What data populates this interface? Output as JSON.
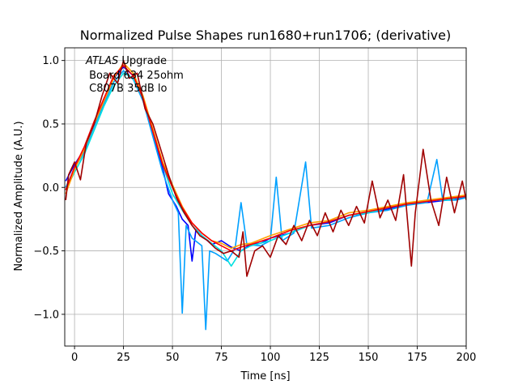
{
  "chart_data": {
    "type": "line",
    "title": "Normalized Pulse Shapes run1680+run1706; (derivative)",
    "xlabel": "Time [ns]",
    "ylabel": "Normalized Amplitude (A.U.)",
    "xlim": [
      -5,
      200
    ],
    "ylim": [
      -1.25,
      1.1
    ],
    "xticks": [
      0,
      25,
      50,
      75,
      100,
      125,
      150,
      175,
      200
    ],
    "yticks": [
      -1.0,
      -0.5,
      0.0,
      0.5,
      1.0
    ],
    "xtick_labels": [
      "0",
      "25",
      "50",
      "75",
      "100",
      "125",
      "150",
      "175",
      "200"
    ],
    "ytick_labels": [
      "−1.0",
      "−0.5",
      "0.0",
      "0.5",
      "1.0"
    ],
    "grid": true,
    "annotation": {
      "atlas": "ATLAS",
      "line1_rest": " Upgrade",
      "line2": " Board 634 25ohm",
      "line3": " C807B 35dB lo"
    },
    "series": [
      {
        "name": "trace-1",
        "color": "#0000ff",
        "points": [
          [
            -4.5,
            0.05
          ],
          [
            0,
            0.18
          ],
          [
            5,
            0.3
          ],
          [
            10,
            0.5
          ],
          [
            15,
            0.7
          ],
          [
            20,
            0.86
          ],
          [
            25,
            0.95
          ],
          [
            30,
            0.88
          ],
          [
            35,
            0.7
          ],
          [
            40,
            0.42
          ],
          [
            45,
            0.15
          ],
          [
            48,
            -0.05
          ],
          [
            52,
            -0.15
          ],
          [
            55,
            -0.25
          ],
          [
            58,
            -0.3
          ],
          [
            60,
            -0.58
          ],
          [
            62,
            -0.33
          ],
          [
            65,
            -0.38
          ],
          [
            70,
            -0.45
          ],
          [
            75,
            -0.42
          ],
          [
            80,
            -0.47
          ],
          [
            85,
            -0.5
          ],
          [
            90,
            -0.45
          ],
          [
            95,
            -0.44
          ],
          [
            100,
            -0.4
          ],
          [
            110,
            -0.36
          ],
          [
            120,
            -0.3
          ],
          [
            130,
            -0.28
          ],
          [
            140,
            -0.22
          ],
          [
            150,
            -0.2
          ],
          [
            160,
            -0.17
          ],
          [
            170,
            -0.13
          ],
          [
            180,
            -0.12
          ],
          [
            190,
            -0.1
          ],
          [
            200,
            -0.08
          ]
        ]
      },
      {
        "name": "trace-2",
        "color": "#00a0ff",
        "points": [
          [
            -4.5,
            0.0
          ],
          [
            0,
            0.15
          ],
          [
            5,
            0.28
          ],
          [
            10,
            0.48
          ],
          [
            15,
            0.66
          ],
          [
            20,
            0.83
          ],
          [
            25,
            0.92
          ],
          [
            30,
            0.85
          ],
          [
            35,
            0.68
          ],
          [
            40,
            0.4
          ],
          [
            45,
            0.12
          ],
          [
            50,
            -0.1
          ],
          [
            53,
            -0.2
          ],
          [
            55,
            -0.99
          ],
          [
            57,
            -0.3
          ],
          [
            60,
            -0.4
          ],
          [
            65,
            -0.46
          ],
          [
            67,
            -1.12
          ],
          [
            69,
            -0.5
          ],
          [
            72,
            -0.52
          ],
          [
            78,
            -0.58
          ],
          [
            82,
            -0.48
          ],
          [
            85,
            -0.12
          ],
          [
            88,
            -0.45
          ],
          [
            95,
            -0.46
          ],
          [
            100,
            -0.42
          ],
          [
            103,
            0.08
          ],
          [
            106,
            -0.42
          ],
          [
            112,
            -0.36
          ],
          [
            118,
            0.2
          ],
          [
            121,
            -0.32
          ],
          [
            130,
            -0.3
          ],
          [
            140,
            -0.24
          ],
          [
            150,
            -0.2
          ],
          [
            160,
            -0.18
          ],
          [
            170,
            -0.14
          ],
          [
            180,
            -0.12
          ],
          [
            185,
            0.22
          ],
          [
            188,
            -0.1
          ],
          [
            195,
            -0.1
          ],
          [
            200,
            -0.08
          ]
        ]
      },
      {
        "name": "trace-3",
        "color": "#00e0e0",
        "points": [
          [
            -4.5,
            -0.02
          ],
          [
            0,
            0.12
          ],
          [
            5,
            0.26
          ],
          [
            10,
            0.45
          ],
          [
            15,
            0.64
          ],
          [
            20,
            0.8
          ],
          [
            25,
            0.9
          ],
          [
            30,
            0.86
          ],
          [
            35,
            0.7
          ],
          [
            40,
            0.44
          ],
          [
            45,
            0.18
          ],
          [
            50,
            -0.05
          ],
          [
            55,
            -0.18
          ],
          [
            60,
            -0.3
          ],
          [
            65,
            -0.38
          ],
          [
            70,
            -0.44
          ],
          [
            75,
            -0.5
          ],
          [
            80,
            -0.62
          ],
          [
            85,
            -0.5
          ],
          [
            90,
            -0.46
          ],
          [
            100,
            -0.42
          ],
          [
            110,
            -0.36
          ],
          [
            120,
            -0.3
          ],
          [
            130,
            -0.27
          ],
          [
            140,
            -0.22
          ],
          [
            150,
            -0.2
          ],
          [
            160,
            -0.16
          ],
          [
            170,
            -0.13
          ],
          [
            180,
            -0.1
          ],
          [
            190,
            -0.1
          ],
          [
            200,
            -0.07
          ]
        ]
      },
      {
        "name": "trace-4",
        "color": "#ffa000",
        "points": [
          [
            -4.5,
            -0.05
          ],
          [
            0,
            0.14
          ],
          [
            5,
            0.3
          ],
          [
            10,
            0.5
          ],
          [
            15,
            0.68
          ],
          [
            20,
            0.86
          ],
          [
            25,
            0.98
          ],
          [
            30,
            0.9
          ],
          [
            35,
            0.72
          ],
          [
            40,
            0.46
          ],
          [
            45,
            0.2
          ],
          [
            50,
            0.02
          ],
          [
            55,
            -0.15
          ],
          [
            60,
            -0.28
          ],
          [
            65,
            -0.36
          ],
          [
            70,
            -0.42
          ],
          [
            75,
            -0.44
          ],
          [
            80,
            -0.48
          ],
          [
            85,
            -0.45
          ],
          [
            90,
            -0.44
          ],
          [
            100,
            -0.38
          ],
          [
            110,
            -0.33
          ],
          [
            120,
            -0.28
          ],
          [
            130,
            -0.26
          ],
          [
            140,
            -0.2
          ],
          [
            150,
            -0.18
          ],
          [
            160,
            -0.15
          ],
          [
            170,
            -0.12
          ],
          [
            180,
            -0.1
          ],
          [
            190,
            -0.08
          ],
          [
            200,
            -0.06
          ]
        ]
      },
      {
        "name": "trace-5",
        "color": "#ff0000",
        "points": [
          [
            -4.5,
            -0.02
          ],
          [
            0,
            0.16
          ],
          [
            5,
            0.32
          ],
          [
            10,
            0.52
          ],
          [
            15,
            0.7
          ],
          [
            20,
            0.88
          ],
          [
            25,
            0.96
          ],
          [
            30,
            0.88
          ],
          [
            35,
            0.7
          ],
          [
            40,
            0.44
          ],
          [
            45,
            0.18
          ],
          [
            50,
            0.0
          ],
          [
            55,
            -0.16
          ],
          [
            60,
            -0.28
          ],
          [
            65,
            -0.36
          ],
          [
            70,
            -0.42
          ],
          [
            75,
            -0.46
          ],
          [
            80,
            -0.5
          ],
          [
            85,
            -0.47
          ],
          [
            90,
            -0.45
          ],
          [
            100,
            -0.4
          ],
          [
            110,
            -0.34
          ],
          [
            120,
            -0.3
          ],
          [
            130,
            -0.27
          ],
          [
            140,
            -0.22
          ],
          [
            150,
            -0.19
          ],
          [
            160,
            -0.16
          ],
          [
            170,
            -0.13
          ],
          [
            180,
            -0.11
          ],
          [
            190,
            -0.09
          ],
          [
            200,
            -0.07
          ]
        ]
      },
      {
        "name": "trace-6",
        "color": "#a00000",
        "points": [
          [
            -4.5,
            -0.1
          ],
          [
            -3,
            0.1
          ],
          [
            0,
            0.2
          ],
          [
            3,
            0.06
          ],
          [
            6,
            0.35
          ],
          [
            10,
            0.5
          ],
          [
            14,
            0.72
          ],
          [
            18,
            0.9
          ],
          [
            22,
            0.82
          ],
          [
            25,
            1.0
          ],
          [
            28,
            0.86
          ],
          [
            32,
            0.9
          ],
          [
            36,
            0.62
          ],
          [
            40,
            0.5
          ],
          [
            44,
            0.3
          ],
          [
            48,
            0.1
          ],
          [
            52,
            -0.08
          ],
          [
            56,
            -0.2
          ],
          [
            60,
            -0.3
          ],
          [
            64,
            -0.38
          ],
          [
            68,
            -0.42
          ],
          [
            72,
            -0.48
          ],
          [
            76,
            -0.52
          ],
          [
            80,
            -0.5
          ],
          [
            84,
            -0.55
          ],
          [
            86,
            -0.35
          ],
          [
            88,
            -0.7
          ],
          [
            92,
            -0.5
          ],
          [
            96,
            -0.46
          ],
          [
            100,
            -0.55
          ],
          [
            104,
            -0.38
          ],
          [
            108,
            -0.45
          ],
          [
            112,
            -0.3
          ],
          [
            116,
            -0.42
          ],
          [
            120,
            -0.26
          ],
          [
            124,
            -0.38
          ],
          [
            128,
            -0.2
          ],
          [
            132,
            -0.35
          ],
          [
            136,
            -0.18
          ],
          [
            140,
            -0.3
          ],
          [
            144,
            -0.15
          ],
          [
            148,
            -0.28
          ],
          [
            152,
            0.05
          ],
          [
            156,
            -0.24
          ],
          [
            160,
            -0.1
          ],
          [
            164,
            -0.26
          ],
          [
            168,
            0.1
          ],
          [
            172,
            -0.62
          ],
          [
            174,
            -0.2
          ],
          [
            178,
            0.3
          ],
          [
            182,
            -0.1
          ],
          [
            186,
            -0.3
          ],
          [
            190,
            0.08
          ],
          [
            194,
            -0.2
          ],
          [
            198,
            0.05
          ],
          [
            200,
            -0.1
          ]
        ]
      }
    ]
  }
}
